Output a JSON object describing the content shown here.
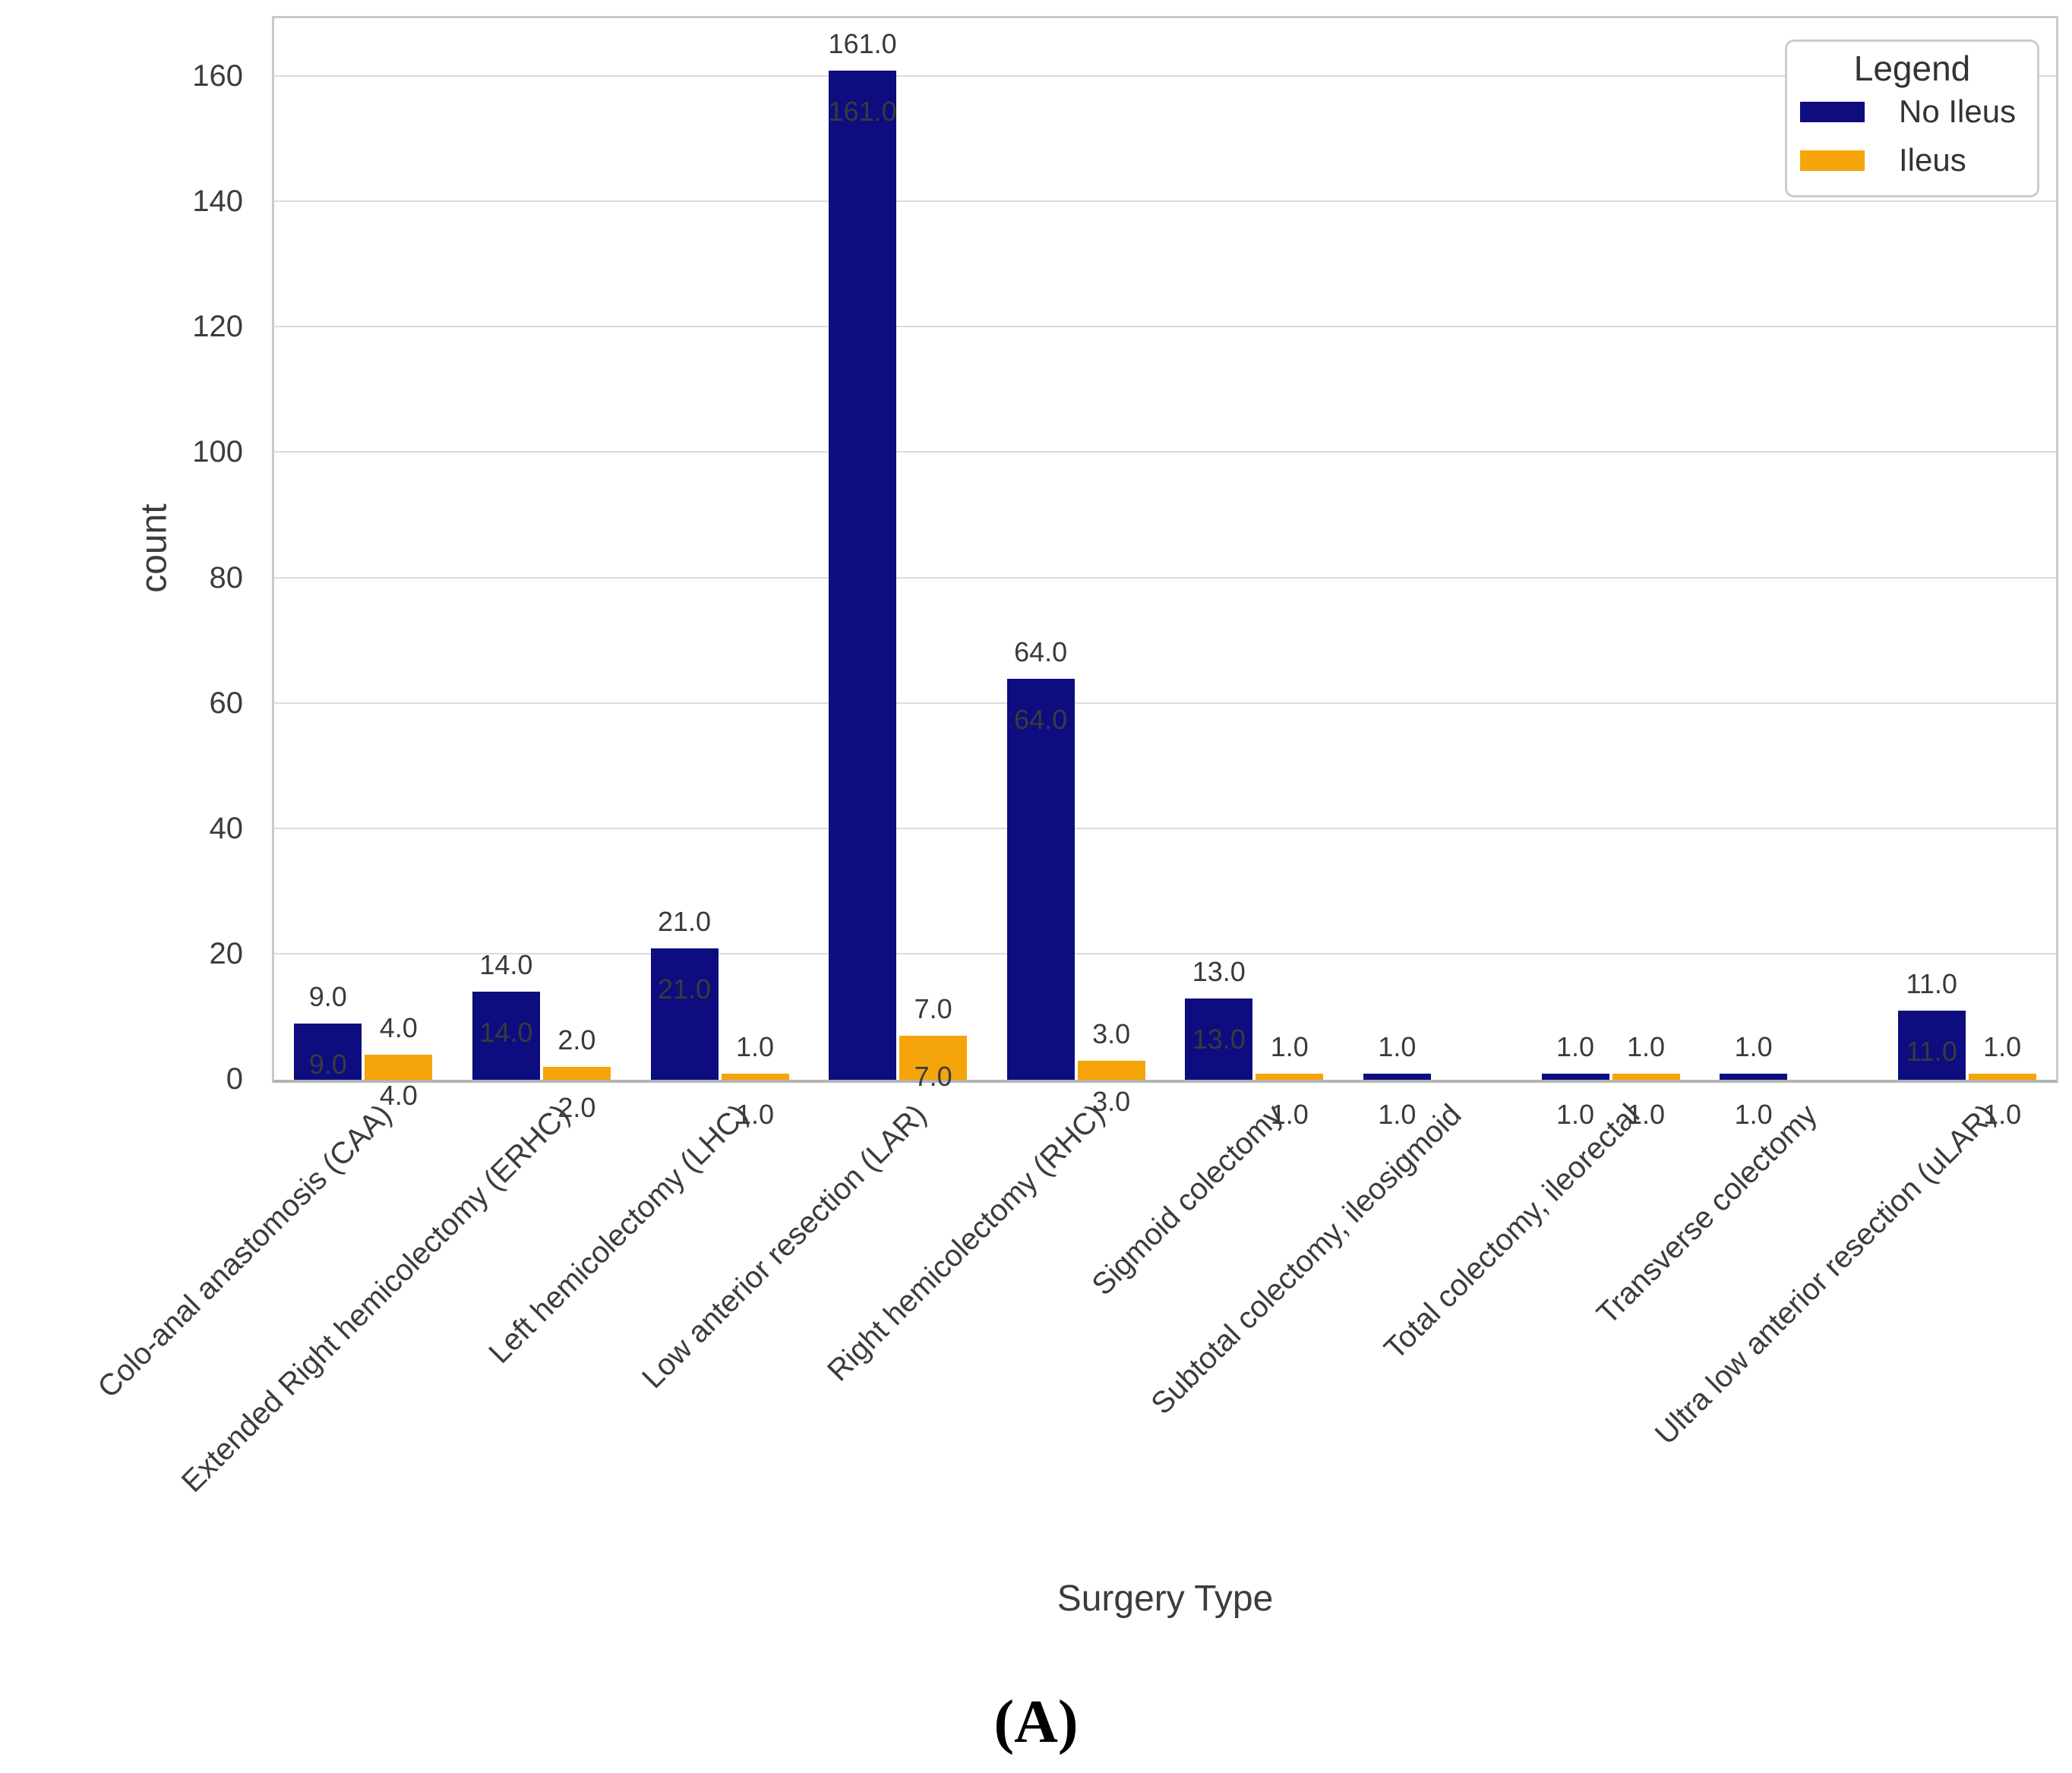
{
  "figure": {
    "caption": "(A)"
  },
  "chart_data": {
    "type": "bar",
    "title": "",
    "xlabel": "Surgery Type",
    "ylabel": "count",
    "ylim": [
      0,
      169
    ],
    "yticks": [
      0,
      20,
      40,
      60,
      80,
      100,
      120,
      140,
      160
    ],
    "grid": "horizontal",
    "legend_position": "upper right",
    "legend": {
      "title": "Legend",
      "entries": [
        {
          "label": "No Ileus",
          "color": "#0d0d80"
        },
        {
          "label": "Ileus",
          "color": "#f5a50a"
        }
      ]
    },
    "categories": [
      "Colo-anal anastomosis (CAA)",
      "Extended Right hemicolectomy (ERHC)",
      "Left hemicolectomy (LHC)",
      "Low anterior resection (LAR)",
      "Right hemicolectomy (RHC)",
      "Sigmoid colectomy",
      "Subtotal colectomy, ileosigmoid",
      "Total colectomy, ileorectal",
      "Transverse colectomy",
      "Ultra low anterior resection (uLAR)"
    ],
    "series": [
      {
        "name": "No Ileus",
        "color": "#0d0d80",
        "values": [
          9.0,
          14.0,
          21.0,
          161.0,
          64.0,
          13.0,
          1.0,
          1.0,
          1.0,
          11.0
        ]
      },
      {
        "name": "Ileus",
        "color": "#f5a50a",
        "values": [
          4.0,
          2.0,
          1.0,
          7.0,
          3.0,
          1.0,
          null,
          1.0,
          null,
          1.0
        ]
      }
    ],
    "bar_label_format": "0.0",
    "bar_label_style": "value above each bar and duplicate value offset below bar top (falls below axis for short bars)"
  }
}
